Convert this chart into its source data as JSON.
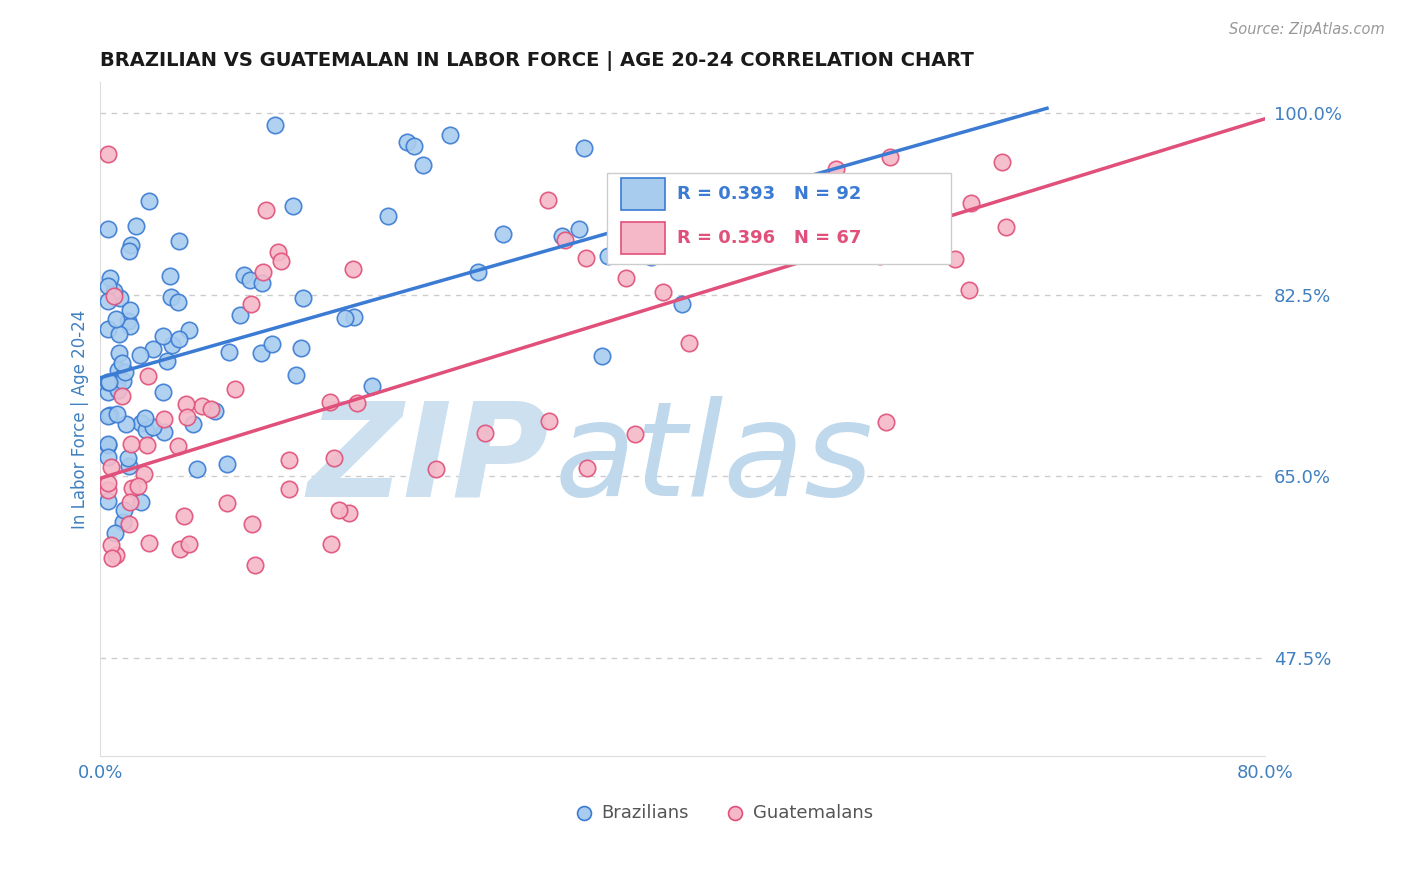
{
  "title": "BRAZILIAN VS GUATEMALAN IN LABOR FORCE | AGE 20-24 CORRELATION CHART",
  "source": "Source: ZipAtlas.com",
  "ylabel": "In Labor Force | Age 20-24",
  "xmin": 0.0,
  "xmax": 0.8,
  "ymin": 0.38,
  "ymax": 1.03,
  "ytick_vals": [
    0.475,
    0.65,
    0.825,
    1.0
  ],
  "ytick_labels": [
    "47.5%",
    "65.0%",
    "82.5%",
    "100.0%"
  ],
  "xtick_vals": [
    0.0,
    0.8
  ],
  "xtick_labels": [
    "0.0%",
    "80.0%"
  ],
  "legend_label1": "Brazilians",
  "legend_label2": "Guatemalans",
  "dot_color_blue": "#a8ccee",
  "dot_color_pink": "#f5b8c8",
  "line_color_blue": "#3b7bd4",
  "line_color_pink": "#e0507a",
  "watermark_zip": "ZIP",
  "watermark_atlas": "atlas",
  "watermark_color_zip": "#cce0f0",
  "watermark_color_atlas": "#c0d8ec",
  "background_color": "#ffffff",
  "title_color": "#1a1a1a",
  "tick_color": "#4080c0",
  "grid_color": "#cccccc",
  "blue_line_x0": 0.0,
  "blue_line_x1": 0.65,
  "blue_line_y0": 0.745,
  "blue_line_y1": 1.005,
  "pink_line_x0": 0.0,
  "pink_line_x1": 0.8,
  "pink_line_y0": 0.648,
  "pink_line_y1": 0.995,
  "blue_seed": 77,
  "pink_seed": 23
}
